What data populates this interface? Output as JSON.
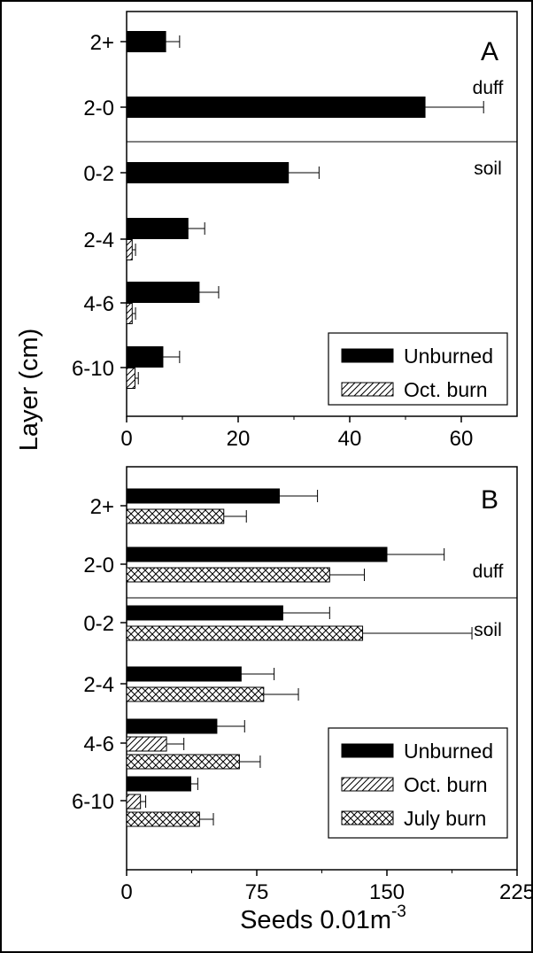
{
  "chart_data": [
    {
      "type": "bar",
      "orientation": "horizontal",
      "panel_label": "A",
      "categories": [
        "2+",
        "2-0",
        "0-2",
        "2-4",
        "4-6",
        "6-10"
      ],
      "series": [
        {
          "name": "Unburned",
          "pattern": "solid",
          "values": [
            7,
            53.5,
            29,
            11,
            13,
            6.5
          ],
          "errors": [
            2.5,
            10.5,
            5.5,
            3,
            3.5,
            3
          ]
        },
        {
          "name": "Oct. burn",
          "pattern": "diagonal",
          "values": [
            null,
            null,
            null,
            1,
            1,
            1.5
          ],
          "errors": [
            null,
            null,
            null,
            0.6,
            0.6,
            0.6
          ]
        }
      ],
      "xlim": [
        0,
        70
      ],
      "xticks": [
        "0",
        "20",
        "40",
        "60"
      ],
      "region_labels": {
        "above": "duff",
        "below": "soil"
      },
      "legend_position": "bottom-right"
    },
    {
      "type": "bar",
      "orientation": "horizontal",
      "panel_label": "B",
      "categories": [
        "2+",
        "2-0",
        "0-2",
        "2-4",
        "4-6",
        "6-10"
      ],
      "series": [
        {
          "name": "Unburned",
          "pattern": "solid",
          "values": [
            88,
            150,
            90,
            66,
            52,
            37
          ],
          "errors": [
            22,
            33,
            27,
            19,
            16,
            4
          ]
        },
        {
          "name": "Oct. burn",
          "pattern": "diagonal",
          "values": [
            null,
            null,
            null,
            null,
            23,
            8
          ],
          "errors": [
            null,
            null,
            null,
            null,
            10,
            3
          ]
        },
        {
          "name": "July burn",
          "pattern": "crosshatch",
          "values": [
            56,
            117,
            136,
            79,
            65,
            42
          ],
          "errors": [
            13,
            20,
            63,
            20,
            12,
            8
          ]
        }
      ],
      "xlim": [
        0,
        225
      ],
      "xticks": [
        "0",
        "75",
        "150",
        "225"
      ],
      "region_labels": {
        "above": "duff",
        "below": "soil"
      },
      "legend_position": "bottom-right"
    }
  ],
  "shared": {
    "ylabel": "Layer (cm)",
    "xlabel_main": "Seeds 0.01m",
    "xlabel_superscript": "-3"
  }
}
